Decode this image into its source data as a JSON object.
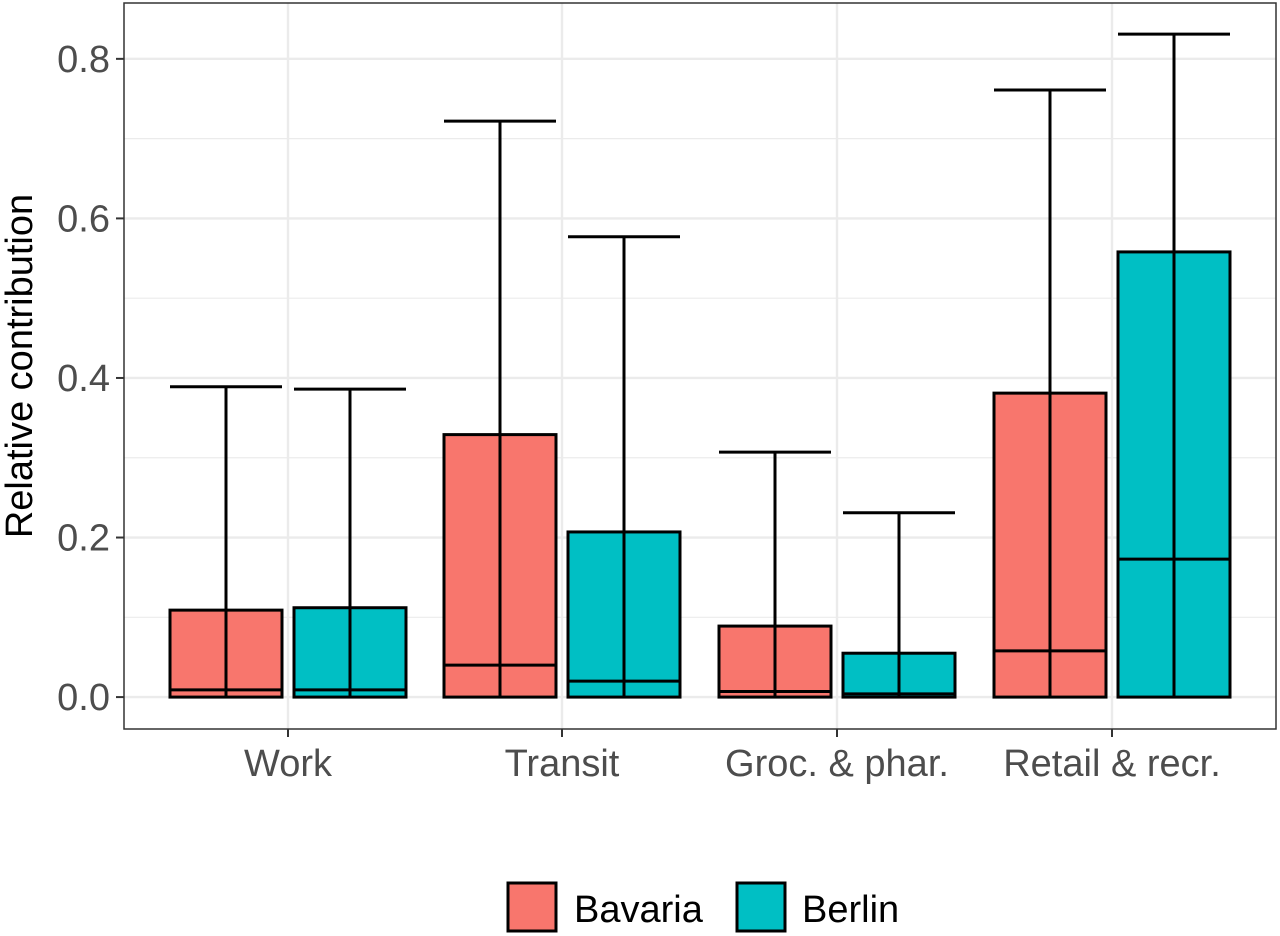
{
  "chart_data": {
    "type": "bar",
    "title": "",
    "xlabel": "",
    "ylabel": "Relative contribution",
    "ylim": [
      -0.04,
      0.87
    ],
    "yticks": [
      "0.0",
      "0.2",
      "0.4",
      "0.6",
      "0.8"
    ],
    "grid": true,
    "legend_position": "bottom",
    "categories": [
      "Work",
      "Transit",
      "Groc. & phar.",
      "Retail & recr."
    ],
    "series": [
      {
        "name": "Bavaria",
        "color": "#F8766D",
        "values": [
          0.109,
          0.329,
          0.089,
          0.381
        ],
        "median": [
          0.009,
          0.04,
          0.007,
          0.058
        ],
        "upper": [
          0.389,
          0.722,
          0.307,
          0.761
        ]
      },
      {
        "name": "Berlin",
        "color": "#00BFC4",
        "values": [
          0.112,
          0.207,
          0.055,
          0.558
        ],
        "median": [
          0.009,
          0.02,
          0.004,
          0.173
        ],
        "upper": [
          0.386,
          0.577,
          0.231,
          0.831
        ]
      }
    ]
  }
}
